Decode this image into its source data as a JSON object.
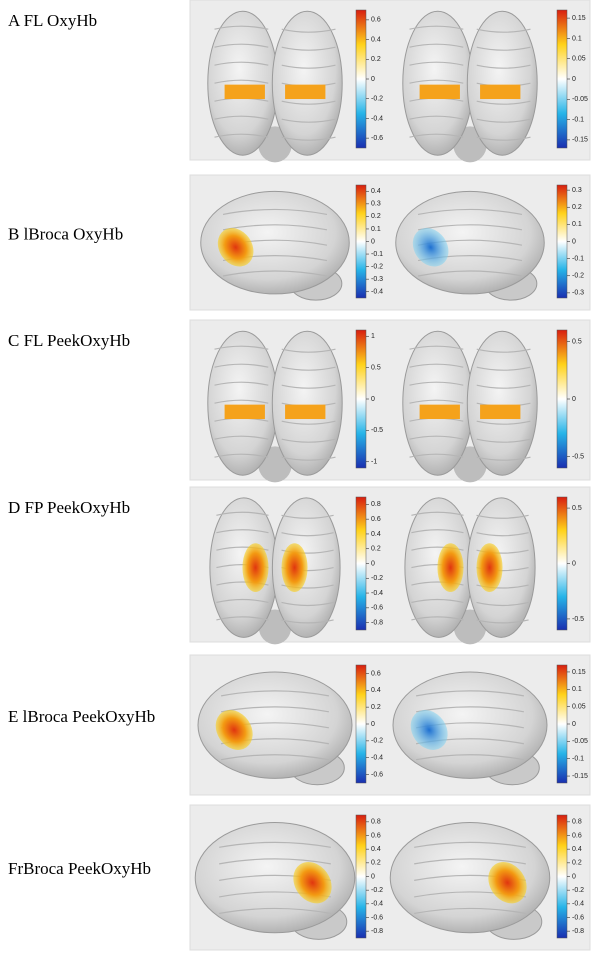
{
  "panels": [
    {
      "label": "A FL OxyHb",
      "colorbars": [
        {
          "lim": [
            -0.7,
            0.7
          ],
          "ticks": [
            0.6,
            0.4,
            0.2,
            0,
            -0.2,
            -0.4,
            -0.6
          ]
        },
        {
          "lim": [
            -0.17,
            0.17
          ],
          "ticks": [
            0.15,
            0.1,
            0.05,
            0,
            -0.05,
            -0.1,
            -0.15
          ]
        }
      ]
    },
    {
      "label": "B lBroca OxyHb",
      "colorbars": [
        {
          "lim": [
            -0.45,
            0.45
          ],
          "ticks": [
            0.4,
            0.3,
            0.2,
            0.1,
            0,
            -0.1,
            -0.2,
            -0.3,
            -0.4
          ]
        },
        {
          "lim": [
            -0.33,
            0.33
          ],
          "ticks": [
            0.3,
            0.2,
            0.1,
            0,
            -0.1,
            -0.2,
            -0.3
          ]
        }
      ]
    },
    {
      "label": "C FL PeekOxyHb",
      "colorbars": [
        {
          "lim": [
            -1.1,
            1.1
          ],
          "ticks": [
            1,
            0.5,
            0,
            -0.5,
            -1
          ]
        },
        {
          "lim": [
            -0.6,
            0.6
          ],
          "ticks": [
            0.5,
            0,
            -0.5
          ]
        }
      ]
    },
    {
      "label": "D FP PeekOxyHb",
      "colorbars": [
        {
          "lim": [
            -0.9,
            0.9
          ],
          "ticks": [
            0.8,
            0.6,
            0.4,
            0.2,
            0,
            -0.2,
            -0.4,
            -0.6,
            -0.8
          ]
        },
        {
          "lim": [
            -0.6,
            0.6
          ],
          "ticks": [
            0.5,
            0,
            -0.5
          ]
        }
      ]
    },
    {
      "label": "E lBroca PeekOxyHb",
      "colorbars": [
        {
          "lim": [
            -0.7,
            0.7
          ],
          "ticks": [
            0.6,
            0.4,
            0.2,
            0,
            -0.2,
            -0.4,
            -0.6
          ]
        },
        {
          "lim": [
            -0.17,
            0.17
          ],
          "ticks": [
            0.15,
            0.1,
            0.05,
            0,
            -0.05,
            -0.1,
            -0.15
          ]
        }
      ]
    },
    {
      "label": "FrBroca PeekOxyHb",
      "colorbars": [
        {
          "lim": [
            -0.9,
            0.9
          ],
          "ticks": [
            0.8,
            0.6,
            0.4,
            0.2,
            0,
            -0.2,
            -0.4,
            -0.6,
            -0.8
          ]
        },
        {
          "lim": [
            -0.9,
            0.9
          ],
          "ticks": [
            0.8,
            0.6,
            0.4,
            0.2,
            0,
            -0.2,
            -0.4,
            -0.6,
            -0.8
          ]
        }
      ]
    }
  ]
}
